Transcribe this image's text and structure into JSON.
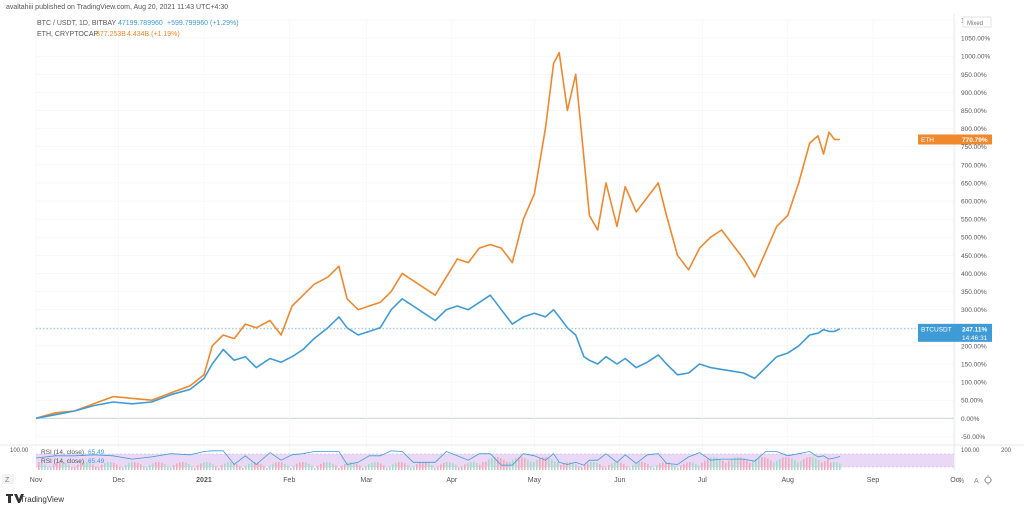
{
  "header": {
    "published": "avaltahiii published on TradingView.com, Aug 20, 2021 11:43 UTC+4:30",
    "legend": [
      {
        "label": "BTC / USDT, 1D, BITBAY",
        "value": "47199.789960",
        "change": "+599.799960 (+1.29%)",
        "color": "#3f9bd6"
      },
      {
        "label": "ETH, CRYPTOCAP",
        "value": "377.253B",
        "change": "4.434B (+1.19%)",
        "color": "#f0882c"
      }
    ],
    "scale_mode": "Mixed"
  },
  "footer": {
    "logo_text": "TradingView",
    "zoom_label": "Z"
  },
  "chart_data": {
    "type": "line",
    "y_unit": "%",
    "ylim": [
      -60,
      1100
    ],
    "y_ticks": [
      "1100.00%",
      "1050.00%",
      "1000.00%",
      "950.00%",
      "900.00%",
      "850.00%",
      "800.00%",
      "750.00%",
      "700.00%",
      "650.00%",
      "600.00%",
      "550.00%",
      "500.00%",
      "450.00%",
      "400.00%",
      "350.00%",
      "300.00%",
      "250.00%",
      "200.00%",
      "150.00%",
      "100.00%",
      "50.00%",
      "0.00%",
      "-50.00%"
    ],
    "x_ticks": [
      "Nov",
      "Dec",
      "2021",
      "Feb",
      "Mar",
      "Apr",
      "May",
      "Jun",
      "Jul",
      "Aug",
      "Sep",
      "Oct"
    ],
    "x_range": [
      "2020-11-01",
      "2021-10-01"
    ],
    "series": [
      {
        "name": "ETH",
        "color": "#f0882c",
        "last_label": "ETH",
        "last_value": "770.79%",
        "points": [
          [
            "2020-11-01",
            0
          ],
          [
            "2020-11-08",
            15
          ],
          [
            "2020-11-15",
            20
          ],
          [
            "2020-11-22",
            40
          ],
          [
            "2020-11-29",
            60
          ],
          [
            "2020-12-06",
            55
          ],
          [
            "2020-12-13",
            50
          ],
          [
            "2020-12-20",
            70
          ],
          [
            "2020-12-27",
            90
          ],
          [
            "2021-01-01",
            120
          ],
          [
            "2021-01-04",
            200
          ],
          [
            "2021-01-08",
            230
          ],
          [
            "2021-01-12",
            220
          ],
          [
            "2021-01-16",
            260
          ],
          [
            "2021-01-20",
            250
          ],
          [
            "2021-01-25",
            270
          ],
          [
            "2021-01-29",
            230
          ],
          [
            "2021-02-02",
            310
          ],
          [
            "2021-02-06",
            340
          ],
          [
            "2021-02-10",
            370
          ],
          [
            "2021-02-15",
            390
          ],
          [
            "2021-02-19",
            420
          ],
          [
            "2021-02-22",
            330
          ],
          [
            "2021-02-26",
            300
          ],
          [
            "2021-03-02",
            310
          ],
          [
            "2021-03-06",
            320
          ],
          [
            "2021-03-10",
            350
          ],
          [
            "2021-03-14",
            400
          ],
          [
            "2021-03-18",
            380
          ],
          [
            "2021-03-22",
            360
          ],
          [
            "2021-03-26",
            340
          ],
          [
            "2021-03-30",
            390
          ],
          [
            "2021-04-03",
            440
          ],
          [
            "2021-04-07",
            430
          ],
          [
            "2021-04-11",
            470
          ],
          [
            "2021-04-15",
            480
          ],
          [
            "2021-04-19",
            470
          ],
          [
            "2021-04-23",
            430
          ],
          [
            "2021-04-27",
            550
          ],
          [
            "2021-05-01",
            620
          ],
          [
            "2021-05-05",
            800
          ],
          [
            "2021-05-08",
            980
          ],
          [
            "2021-05-10",
            1010
          ],
          [
            "2021-05-13",
            850
          ],
          [
            "2021-05-16",
            950
          ],
          [
            "2021-05-19",
            720
          ],
          [
            "2021-05-21",
            560
          ],
          [
            "2021-05-24",
            520
          ],
          [
            "2021-05-27",
            650
          ],
          [
            "2021-05-31",
            530
          ],
          [
            "2021-06-03",
            640
          ],
          [
            "2021-06-07",
            570
          ],
          [
            "2021-06-11",
            610
          ],
          [
            "2021-06-15",
            650
          ],
          [
            "2021-06-18",
            560
          ],
          [
            "2021-06-22",
            450
          ],
          [
            "2021-06-26",
            410
          ],
          [
            "2021-06-30",
            470
          ],
          [
            "2021-07-04",
            500
          ],
          [
            "2021-07-08",
            520
          ],
          [
            "2021-07-12",
            480
          ],
          [
            "2021-07-16",
            440
          ],
          [
            "2021-07-20",
            390
          ],
          [
            "2021-07-24",
            460
          ],
          [
            "2021-07-28",
            530
          ],
          [
            "2021-08-01",
            560
          ],
          [
            "2021-08-05",
            650
          ],
          [
            "2021-08-09",
            760
          ],
          [
            "2021-08-12",
            780
          ],
          [
            "2021-08-14",
            730
          ],
          [
            "2021-08-16",
            790
          ],
          [
            "2021-08-18",
            770
          ],
          [
            "2021-08-20",
            770
          ]
        ]
      },
      {
        "name": "BTCUSDT",
        "color": "#3f9bd6",
        "last_label": "BTCUSDT",
        "last_value": "247.11%",
        "countdown": "14:46:31",
        "points": [
          [
            "2020-11-01",
            0
          ],
          [
            "2020-11-08",
            10
          ],
          [
            "2020-11-15",
            20
          ],
          [
            "2020-11-22",
            35
          ],
          [
            "2020-11-29",
            45
          ],
          [
            "2020-12-06",
            40
          ],
          [
            "2020-12-13",
            45
          ],
          [
            "2020-12-20",
            65
          ],
          [
            "2020-12-27",
            80
          ],
          [
            "2021-01-01",
            110
          ],
          [
            "2021-01-04",
            150
          ],
          [
            "2021-01-08",
            190
          ],
          [
            "2021-01-12",
            160
          ],
          [
            "2021-01-16",
            170
          ],
          [
            "2021-01-20",
            140
          ],
          [
            "2021-01-25",
            165
          ],
          [
            "2021-01-29",
            155
          ],
          [
            "2021-02-02",
            170
          ],
          [
            "2021-02-06",
            190
          ],
          [
            "2021-02-10",
            220
          ],
          [
            "2021-02-15",
            250
          ],
          [
            "2021-02-19",
            280
          ],
          [
            "2021-02-22",
            250
          ],
          [
            "2021-02-26",
            230
          ],
          [
            "2021-03-02",
            240
          ],
          [
            "2021-03-06",
            250
          ],
          [
            "2021-03-10",
            300
          ],
          [
            "2021-03-14",
            330
          ],
          [
            "2021-03-18",
            310
          ],
          [
            "2021-03-22",
            290
          ],
          [
            "2021-03-26",
            270
          ],
          [
            "2021-03-30",
            300
          ],
          [
            "2021-04-03",
            310
          ],
          [
            "2021-04-07",
            300
          ],
          [
            "2021-04-11",
            320
          ],
          [
            "2021-04-15",
            340
          ],
          [
            "2021-04-19",
            300
          ],
          [
            "2021-04-23",
            260
          ],
          [
            "2021-04-27",
            280
          ],
          [
            "2021-05-01",
            290
          ],
          [
            "2021-05-05",
            280
          ],
          [
            "2021-05-08",
            300
          ],
          [
            "2021-05-10",
            280
          ],
          [
            "2021-05-13",
            250
          ],
          [
            "2021-05-16",
            230
          ],
          [
            "2021-05-19",
            170
          ],
          [
            "2021-05-21",
            160
          ],
          [
            "2021-05-24",
            150
          ],
          [
            "2021-05-27",
            170
          ],
          [
            "2021-05-31",
            150
          ],
          [
            "2021-06-03",
            165
          ],
          [
            "2021-06-07",
            140
          ],
          [
            "2021-06-11",
            155
          ],
          [
            "2021-06-15",
            175
          ],
          [
            "2021-06-18",
            150
          ],
          [
            "2021-06-22",
            120
          ],
          [
            "2021-06-26",
            125
          ],
          [
            "2021-06-30",
            150
          ],
          [
            "2021-07-04",
            140
          ],
          [
            "2021-07-08",
            135
          ],
          [
            "2021-07-12",
            130
          ],
          [
            "2021-07-16",
            125
          ],
          [
            "2021-07-20",
            110
          ],
          [
            "2021-07-24",
            140
          ],
          [
            "2021-07-28",
            170
          ],
          [
            "2021-08-01",
            180
          ],
          [
            "2021-08-05",
            200
          ],
          [
            "2021-08-09",
            230
          ],
          [
            "2021-08-12",
            235
          ],
          [
            "2021-08-14",
            245
          ],
          [
            "2021-08-16",
            240
          ],
          [
            "2021-08-18",
            240
          ],
          [
            "2021-08-20",
            247
          ]
        ]
      }
    ],
    "indicators": [
      {
        "label": "RSI (14, close)",
        "value": "65.49"
      },
      {
        "label": "RSI (14, close)",
        "value": "65.49"
      }
    ],
    "indicator_scale": [
      "100.00",
      "200"
    ]
  }
}
